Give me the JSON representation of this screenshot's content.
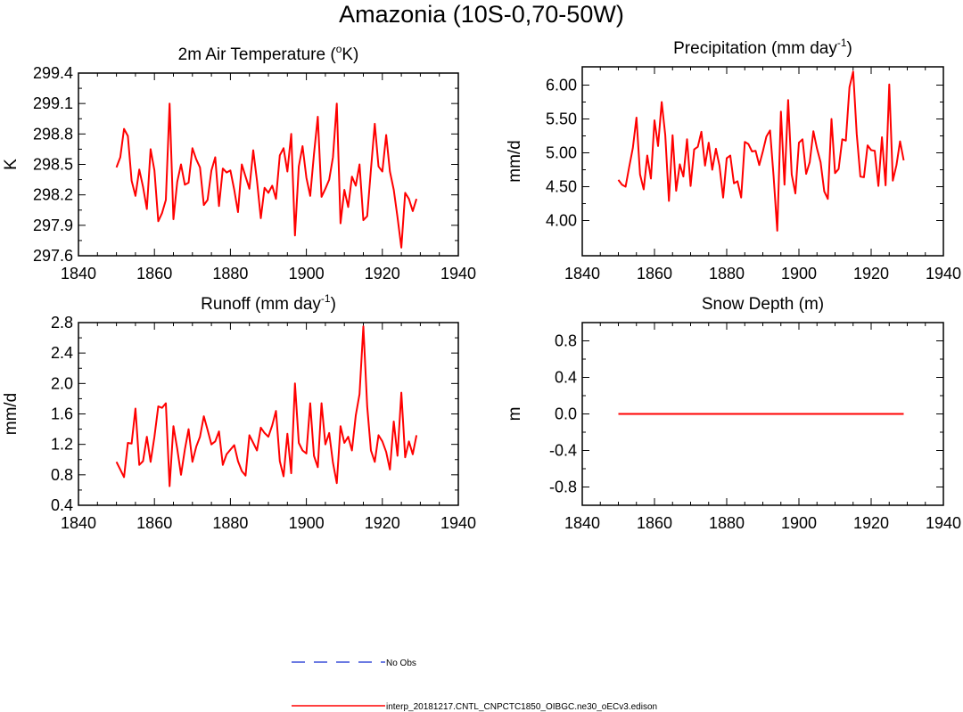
{
  "title": "Amazonia (10S-0,70-50W)",
  "colors": {
    "model": "#ff0000",
    "obs": "#3a4fd8",
    "frame": "#000000"
  },
  "legend": [
    {
      "label": "No Obs",
      "style": "dashed",
      "color": "#3a4fd8"
    },
    {
      "label": "interp_20181217.CNTL_CNPCTC1850_OIBGC.ne30_oECv3.edison",
      "style": "solid",
      "color": "#ff0000"
    }
  ],
  "chart_data": [
    {
      "type": "line",
      "title": "2m Air Temperature (°K)",
      "title_parts": {
        "pre": "2m Air Temperature (",
        "sup": "o",
        "post": "K)"
      },
      "ylabel": "K",
      "xlim": [
        1840,
        1940
      ],
      "ylim": [
        297.6,
        299.4
      ],
      "x_ticks": [
        1840,
        1860,
        1880,
        1900,
        1920,
        1940
      ],
      "x_tick_labels": [
        "1840",
        "1860",
        "1880",
        "1900",
        "1920",
        "1940"
      ],
      "y_ticks": [
        297.6,
        297.9,
        298.2,
        298.5,
        298.8,
        299.1,
        299.4
      ],
      "y_tick_labels": [
        "297.6",
        "297.9",
        "298.2",
        "298.5",
        "298.8",
        "299.1",
        "299.4"
      ],
      "series": [
        {
          "name": "interp_20181217.CNTL_CNPCTC1850_OIBGC.ne30_oECv3.edison",
          "x_start": 1850,
          "values": [
            298.47,
            298.57,
            298.85,
            298.78,
            298.34,
            298.19,
            298.45,
            298.28,
            298.06,
            298.65,
            298.44,
            297.94,
            298.02,
            298.15,
            299.1,
            297.96,
            298.33,
            298.5,
            298.3,
            298.32,
            298.66,
            298.55,
            298.47,
            298.1,
            298.15,
            298.44,
            298.57,
            298.09,
            298.46,
            298.42,
            298.44,
            298.25,
            298.03,
            298.5,
            298.38,
            298.26,
            298.64,
            298.34,
            297.97,
            298.27,
            298.22,
            298.29,
            298.16,
            298.59,
            298.66,
            298.43,
            298.8,
            297.8,
            298.48,
            298.68,
            298.37,
            298.19,
            298.6,
            298.97,
            298.18,
            298.26,
            298.35,
            298.57,
            299.1,
            297.92,
            298.25,
            298.08,
            298.38,
            298.29,
            298.5,
            297.95,
            297.99,
            298.45,
            298.9,
            298.48,
            298.43,
            298.79,
            298.43,
            298.25,
            297.98,
            297.68,
            298.22,
            298.16,
            298.04,
            298.16
          ]
        }
      ]
    },
    {
      "type": "line",
      "title": "Precipitation (mm day-1)",
      "title_parts": {
        "pre": "Precipitation (mm day",
        "sup": "-1",
        "post": ")"
      },
      "ylabel": "mm/d",
      "xlim": [
        1840,
        1940
      ],
      "ylim": [
        3.48,
        6.27
      ],
      "x_ticks": [
        1840,
        1860,
        1880,
        1900,
        1920,
        1940
      ],
      "x_tick_labels": [
        "1840",
        "1860",
        "1880",
        "1900",
        "1920",
        "1940"
      ],
      "y_ticks": [
        4.0,
        4.5,
        5.0,
        5.5,
        6.0
      ],
      "y_tick_labels": [
        "4.00",
        "4.50",
        "5.00",
        "5.50",
        "6.00"
      ],
      "series": [
        {
          "name": "interp_20181217.CNTL_CNPCTC1850_OIBGC.ne30_oECv3.edison",
          "x_start": 1850,
          "values": [
            4.6,
            4.53,
            4.5,
            4.79,
            5.07,
            5.52,
            4.68,
            4.46,
            4.96,
            4.62,
            5.48,
            5.1,
            5.75,
            5.26,
            4.29,
            5.26,
            4.44,
            4.83,
            4.65,
            5.2,
            4.51,
            5.05,
            5.09,
            5.31,
            4.81,
            5.15,
            4.75,
            5.06,
            4.81,
            4.34,
            4.92,
            4.96,
            4.55,
            4.58,
            4.34,
            5.16,
            5.13,
            5.02,
            5.03,
            4.82,
            5.02,
            5.24,
            5.33,
            4.65,
            3.85,
            5.61,
            4.53,
            5.78,
            4.68,
            4.4,
            5.15,
            5.2,
            4.69,
            4.86,
            5.32,
            5.06,
            4.86,
            4.43,
            4.32,
            5.5,
            4.7,
            4.76,
            5.2,
            5.18,
            5.97,
            6.2,
            5.28,
            4.65,
            4.64,
            5.11,
            5.04,
            5.03,
            4.51,
            5.23,
            4.52,
            6.01,
            4.59,
            4.82,
            5.17,
            4.89
          ]
        }
      ]
    },
    {
      "type": "line",
      "title": "Runoff (mm day-1)",
      "title_parts": {
        "pre": "Runoff (mm day",
        "sup": "-1",
        "post": ")"
      },
      "ylabel": "mm/d",
      "xlim": [
        1840,
        1940
      ],
      "ylim": [
        0.4,
        2.8
      ],
      "x_ticks": [
        1840,
        1860,
        1880,
        1900,
        1920,
        1940
      ],
      "x_tick_labels": [
        "1840",
        "1860",
        "1880",
        "1900",
        "1920",
        "1940"
      ],
      "y_ticks": [
        0.4,
        0.8,
        1.2,
        1.6,
        2.0,
        2.4,
        2.8
      ],
      "y_tick_labels": [
        "0.4",
        "0.8",
        "1.2",
        "1.6",
        "2.0",
        "2.4",
        "2.8"
      ],
      "series": [
        {
          "name": "interp_20181217.CNTL_CNPCTC1850_OIBGC.ne30_oECv3.edison",
          "x_start": 1850,
          "values": [
            0.97,
            0.87,
            0.77,
            1.22,
            1.21,
            1.67,
            0.93,
            0.98,
            1.3,
            0.97,
            1.3,
            1.7,
            1.68,
            1.74,
            0.65,
            1.44,
            1.14,
            0.8,
            1.13,
            1.4,
            0.97,
            1.17,
            1.3,
            1.57,
            1.39,
            1.2,
            1.24,
            1.37,
            0.93,
            1.07,
            1.13,
            1.19,
            0.98,
            0.85,
            0.79,
            1.32,
            1.22,
            1.12,
            1.42,
            1.35,
            1.3,
            1.45,
            1.64,
            0.98,
            0.78,
            1.34,
            0.82,
            2.0,
            1.22,
            1.12,
            1.08,
            1.74,
            1.05,
            0.9,
            1.74,
            1.2,
            1.35,
            0.96,
            0.69,
            1.44,
            1.22,
            1.3,
            1.12,
            1.58,
            1.86,
            2.75,
            1.7,
            1.12,
            0.97,
            1.32,
            1.24,
            1.1,
            0.87,
            1.5,
            1.05,
            1.88,
            1.03,
            1.24,
            1.07,
            1.32
          ]
        }
      ]
    },
    {
      "type": "line",
      "title": "Snow Depth (m)",
      "title_parts": {
        "pre": "Snow Depth (m)",
        "sup": "",
        "post": ""
      },
      "ylabel": "m",
      "xlim": [
        1840,
        1940
      ],
      "ylim": [
        -1.0,
        1.0
      ],
      "x_ticks": [
        1840,
        1860,
        1880,
        1900,
        1920,
        1940
      ],
      "x_tick_labels": [
        "1840",
        "1860",
        "1880",
        "1900",
        "1920",
        "1940"
      ],
      "y_ticks": [
        -0.8,
        -0.4,
        0.0,
        0.4,
        0.8
      ],
      "y_tick_labels": [
        "-0.8",
        "-0.4",
        "0.0",
        "0.4",
        "0.8"
      ],
      "series": [
        {
          "name": "interp_20181217.CNTL_CNPCTC1850_OIBGC.ne30_oECv3.edison",
          "x_start": 1850,
          "values": [
            0,
            0,
            0,
            0,
            0,
            0,
            0,
            0,
            0,
            0,
            0,
            0,
            0,
            0,
            0,
            0,
            0,
            0,
            0,
            0,
            0,
            0,
            0,
            0,
            0,
            0,
            0,
            0,
            0,
            0,
            0,
            0,
            0,
            0,
            0,
            0,
            0,
            0,
            0,
            0,
            0,
            0,
            0,
            0,
            0,
            0,
            0,
            0,
            0,
            0,
            0,
            0,
            0,
            0,
            0,
            0,
            0,
            0,
            0,
            0,
            0,
            0,
            0,
            0,
            0,
            0,
            0,
            0,
            0,
            0,
            0,
            0,
            0,
            0,
            0,
            0,
            0,
            0,
            0,
            0
          ]
        }
      ]
    }
  ]
}
